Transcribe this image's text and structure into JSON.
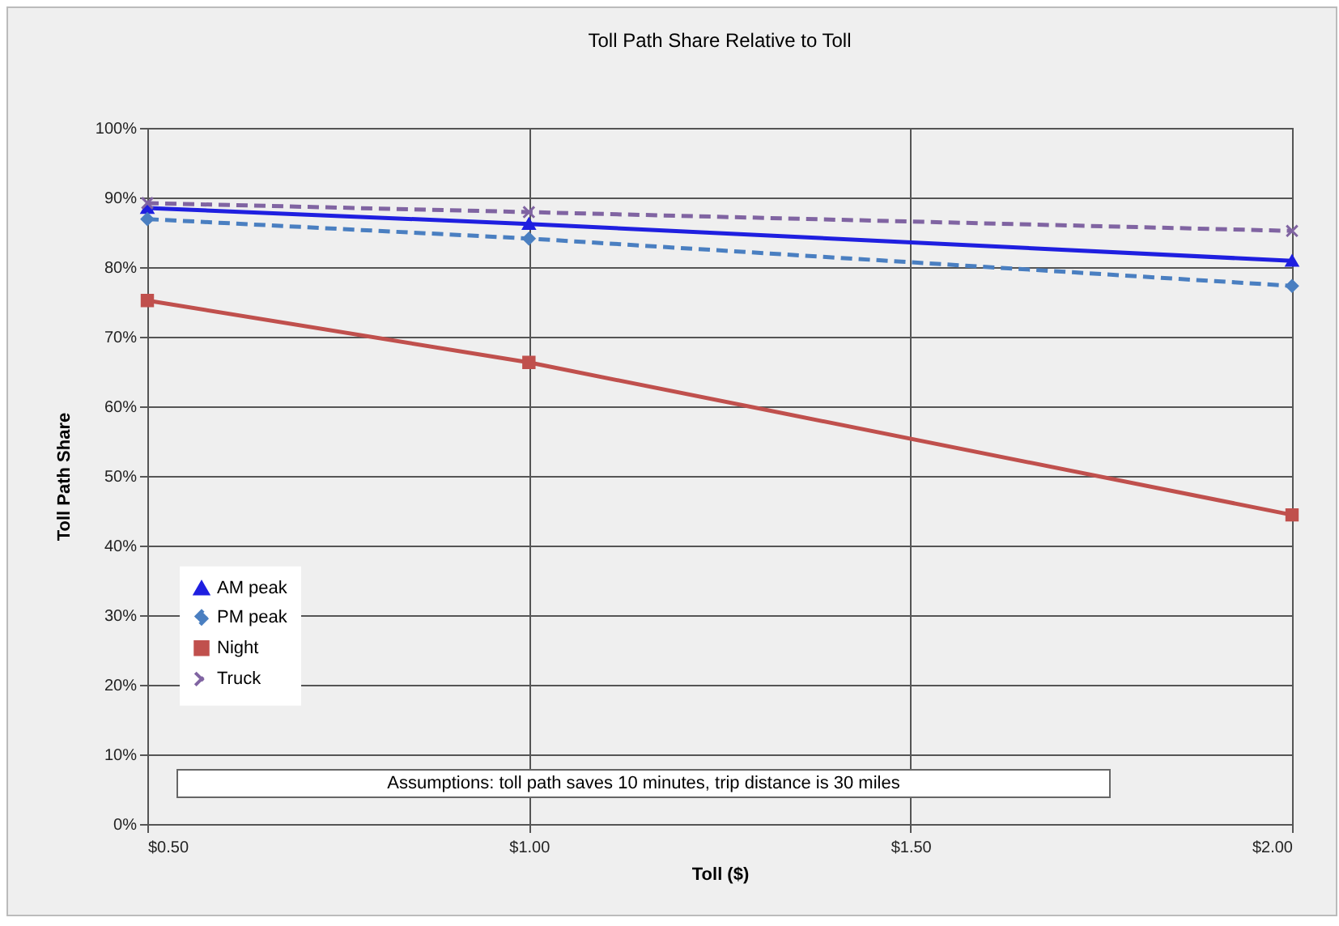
{
  "chart_data": {
    "type": "line",
    "title": "Toll Path Share Relative to Toll",
    "xlabel": "Toll ($)",
    "ylabel": "Toll Path Share",
    "x": [
      0.5,
      1.0,
      2.0
    ],
    "series": [
      {
        "name": "AM peak",
        "color": "#1f1fe0",
        "marker": "triangle",
        "line_style": "solid",
        "values": [
          88.5,
          86.2,
          80.9
        ]
      },
      {
        "name": "PM peak",
        "color": "#4a7fc1",
        "marker": "diamond",
        "line_style": "dashed",
        "values": [
          86.9,
          84.1,
          77.3
        ]
      },
      {
        "name": "Night",
        "color": "#c0504d",
        "marker": "square",
        "line_style": "solid",
        "values": [
          75.2,
          66.3,
          44.4
        ]
      },
      {
        "name": "Truck",
        "color": "#8064a2",
        "marker": "cross",
        "line_style": "dashed",
        "values": [
          89.2,
          87.9,
          85.2
        ]
      }
    ],
    "xlim": [
      0.5,
      2.0
    ],
    "xticks": [
      {
        "value": 0.5,
        "label": "$0.50"
      },
      {
        "value": 1.0,
        "label": "$1.00"
      },
      {
        "value": 1.5,
        "label": "$1.50"
      },
      {
        "value": 2.0,
        "label": "$2.00"
      }
    ],
    "ylim": [
      0,
      100
    ],
    "yticks": [
      {
        "value": 0,
        "label": "0%"
      },
      {
        "value": 10,
        "label": "10%"
      },
      {
        "value": 20,
        "label": "20%"
      },
      {
        "value": 30,
        "label": "30%"
      },
      {
        "value": 40,
        "label": "40%"
      },
      {
        "value": 50,
        "label": "50%"
      },
      {
        "value": 60,
        "label": "60%"
      },
      {
        "value": 70,
        "label": "70%"
      },
      {
        "value": 80,
        "label": "80%"
      },
      {
        "value": 90,
        "label": "90%"
      },
      {
        "value": 100,
        "label": "100%"
      }
    ],
    "grid": true,
    "legend": "left",
    "annotations": [
      "Assumptions: toll path saves 10 minutes, trip distance is 30 miles"
    ]
  }
}
